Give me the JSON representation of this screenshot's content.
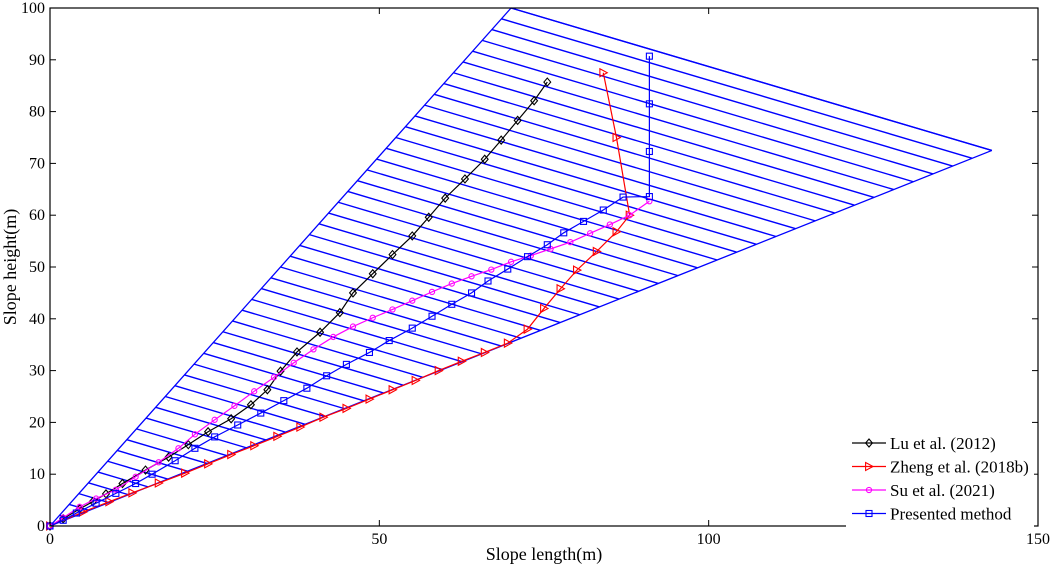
{
  "chart_data": {
    "type": "line",
    "xlabel": "Slope length(m)",
    "ylabel": "Slope height(m)",
    "xlim": [
      0,
      150
    ],
    "ylim": [
      0,
      100
    ],
    "xticks": [
      "0",
      "50",
      "100",
      "150"
    ],
    "yticks": [
      "0",
      "10",
      "20",
      "30",
      "40",
      "50",
      "60",
      "70",
      "80",
      "90",
      "100"
    ],
    "grid": false,
    "legend_position": "bottom-right",
    "slope_outline": {
      "color": "#0000ff",
      "upper_face": [
        [
          0,
          0
        ],
        [
          70,
          100
        ]
      ],
      "lower_face": [
        [
          0,
          0
        ],
        [
          143,
          72.5
        ]
      ],
      "hatch_lines": 48
    },
    "series": [
      {
        "name": "Lu et al. (2012)",
        "color": "#000000",
        "marker": "diamond",
        "points": [
          [
            0,
            0
          ],
          [
            2,
            1.4
          ],
          [
            4.5,
            3.3
          ],
          [
            6.5,
            4.7
          ],
          [
            8.5,
            6.2
          ],
          [
            11,
            8.2
          ],
          [
            14.5,
            10.8
          ],
          [
            18,
            13.3
          ],
          [
            21,
            15.7
          ],
          [
            24,
            18.2
          ],
          [
            27.5,
            20.7
          ],
          [
            30.5,
            23.4
          ],
          [
            33,
            26.3
          ],
          [
            35,
            29.9
          ],
          [
            37.5,
            33.6
          ],
          [
            41,
            37.4
          ],
          [
            44,
            41.2
          ],
          [
            46,
            45
          ],
          [
            49,
            48.7
          ],
          [
            52,
            52.4
          ],
          [
            55,
            56
          ],
          [
            57.5,
            59.6
          ],
          [
            60,
            63.3
          ],
          [
            63,
            67
          ],
          [
            66,
            70.8
          ],
          [
            68.5,
            74.5
          ],
          [
            71,
            78.3
          ],
          [
            73.5,
            82.1
          ],
          [
            75.5,
            85.7
          ]
        ]
      },
      {
        "name": "Zheng et al. (2018b)",
        "color": "#ff0000",
        "marker": "triangle-right",
        "points": [
          [
            0,
            0
          ],
          [
            5,
            2.7
          ],
          [
            9,
            4.7
          ],
          [
            12.5,
            6.4
          ],
          [
            16.5,
            8.3
          ],
          [
            20.5,
            10.2
          ],
          [
            24,
            12
          ],
          [
            27.5,
            13.8
          ],
          [
            31,
            15.5
          ],
          [
            34.5,
            17.3
          ],
          [
            38,
            19.1
          ],
          [
            41.5,
            21
          ],
          [
            45,
            22.7
          ],
          [
            48.5,
            24.5
          ],
          [
            52,
            26.3
          ],
          [
            55.5,
            28.1
          ],
          [
            59,
            30
          ],
          [
            62.5,
            31.8
          ],
          [
            66,
            33.5
          ],
          [
            69.5,
            35.3
          ],
          [
            72.5,
            38
          ],
          [
            75,
            42
          ],
          [
            77.5,
            45.8
          ],
          [
            80,
            49.4
          ],
          [
            83,
            53
          ],
          [
            86,
            56.8
          ],
          [
            88,
            60
          ],
          [
            86,
            75
          ],
          [
            84,
            87.5
          ]
        ]
      },
      {
        "name": "Su et al. (2021)",
        "color": "#ff00ff",
        "marker": "circle",
        "points": [
          [
            0,
            0
          ],
          [
            2,
            1.6
          ],
          [
            4.5,
            3.7
          ],
          [
            7,
            5.3
          ],
          [
            10,
            7
          ],
          [
            13,
            9.5
          ],
          [
            16.5,
            12.3
          ],
          [
            19.5,
            15
          ],
          [
            22,
            17.7
          ],
          [
            25,
            20.5
          ],
          [
            28,
            23.2
          ],
          [
            31,
            26
          ],
          [
            34,
            28.7
          ],
          [
            37,
            31.5
          ],
          [
            40,
            34.1
          ],
          [
            43,
            36.5
          ],
          [
            46,
            38.5
          ],
          [
            49,
            40.2
          ],
          [
            52,
            41.8
          ],
          [
            55,
            43.5
          ],
          [
            58,
            45.2
          ],
          [
            61,
            46.8
          ],
          [
            64,
            48.2
          ],
          [
            67,
            49.5
          ],
          [
            70,
            51
          ],
          [
            73,
            52.2
          ],
          [
            76,
            53.5
          ],
          [
            79,
            54.8
          ],
          [
            82,
            56.5
          ],
          [
            85,
            58.2
          ],
          [
            88,
            60
          ],
          [
            91,
            62.7
          ]
        ]
      },
      {
        "name": "Presented method",
        "color": "#0000ff",
        "marker": "square",
        "points": [
          [
            0,
            0
          ],
          [
            2,
            1.1
          ],
          [
            4,
            2.5
          ],
          [
            7,
            4.4
          ],
          [
            10,
            6.3
          ],
          [
            13,
            8.2
          ],
          [
            15.5,
            10
          ],
          [
            19,
            12.6
          ],
          [
            22,
            15
          ],
          [
            25,
            17.2
          ],
          [
            28.5,
            19.5
          ],
          [
            32,
            21.8
          ],
          [
            35.5,
            24.2
          ],
          [
            39,
            26.6
          ],
          [
            42,
            29
          ],
          [
            45,
            31.2
          ],
          [
            48.5,
            33.5
          ],
          [
            51.5,
            35.8
          ],
          [
            55,
            38.2
          ],
          [
            58,
            40.5
          ],
          [
            61,
            42.8
          ],
          [
            64,
            45
          ],
          [
            66.5,
            47.3
          ],
          [
            69.5,
            49.6
          ],
          [
            72.5,
            52
          ],
          [
            75.5,
            54.3
          ],
          [
            78,
            56.6
          ],
          [
            81,
            58.8
          ],
          [
            84,
            61
          ],
          [
            87,
            63.5
          ],
          [
            91,
            63.6
          ],
          [
            91,
            72.3
          ],
          [
            91,
            81.5
          ],
          [
            91,
            90.7
          ]
        ]
      }
    ]
  }
}
